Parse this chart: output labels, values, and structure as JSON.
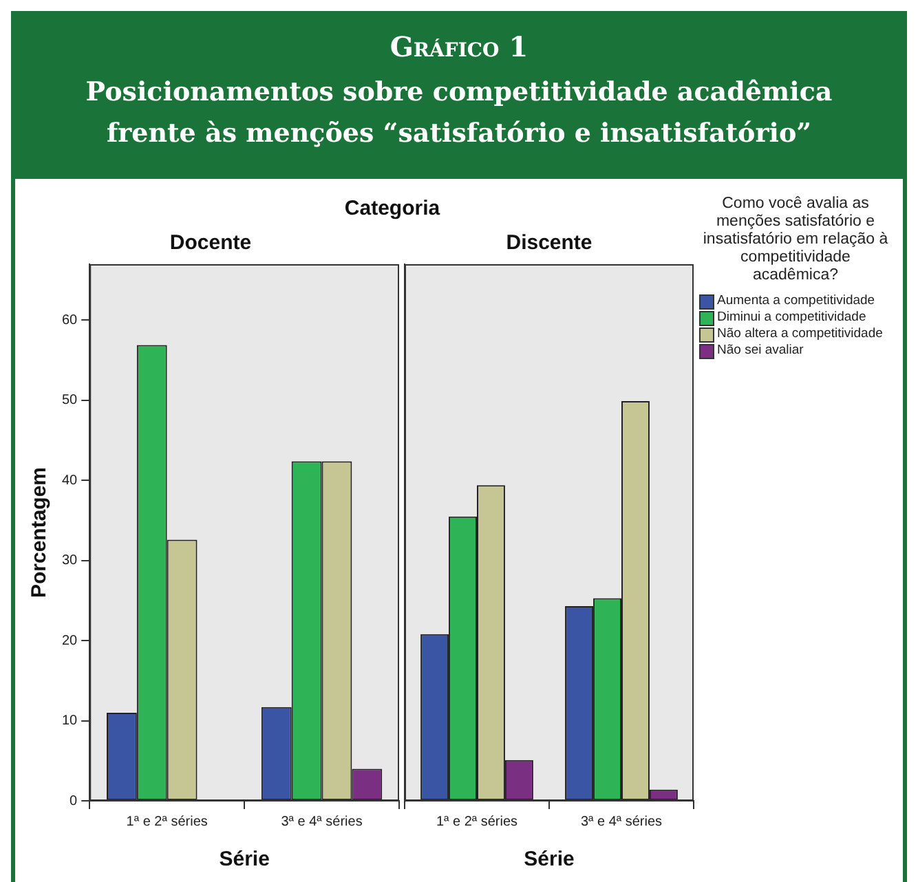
{
  "chart_data": [
    {
      "type": "bar",
      "title": "Docente",
      "xlabel": "Série",
      "ylabel": "Porcentagem",
      "annotations": [
        "Gráfico 1",
        "Posicionamentos sobre competitividade acadêmica frente às menções “satisfatório e insatisfatório”",
        "Categoria"
      ],
      "categories": [
        "1ª e 2ª séries",
        "3ª e 4ª séries"
      ],
      "series": [
        {
          "color": "#3a55a4",
          "values": [
            11.0,
            11.7
          ]
        },
        {
          "color": "#2eb456",
          "values": [
            56.9,
            42.4
          ]
        },
        {
          "color": "#c6c594",
          "values": [
            32.6,
            42.4
          ]
        },
        {
          "color": "#7b2f82",
          "values": [
            null,
            4.0
          ]
        }
      ],
      "ylim": [
        0,
        67
      ],
      "yticks": [
        0,
        10,
        20,
        30,
        40,
        50,
        60
      ],
      "grid": false,
      "legend": false
    },
    {
      "type": "bar",
      "title": "Discente",
      "xlabel": "Série",
      "legend_title": "Como você avalia as menções satisfatório e insatisfatório em relação à competitividade acadêmica?",
      "categories": [
        "1ª e 2ª séries",
        "3ª e 4ª séries"
      ],
      "series": [
        {
          "name": "Aumenta a competitividade",
          "color": "#3a55a4",
          "values": [
            20.8,
            24.3
          ]
        },
        {
          "name": "Diminui a competitividade",
          "color": "#2eb456",
          "values": [
            35.5,
            25.3
          ]
        },
        {
          "name": "Não altera a competitividade",
          "color": "#c6c594",
          "values": [
            39.4,
            49.9
          ]
        },
        {
          "name": "Não sei avaliar",
          "color": "#7b2f82",
          "values": [
            5.1,
            1.4
          ]
        }
      ],
      "ylim": [
        0,
        67
      ],
      "yticks": [
        0,
        10,
        20,
        30,
        40,
        50,
        60
      ],
      "grid": false,
      "legend": "right",
      "tick_labels": "x"
    }
  ]
}
